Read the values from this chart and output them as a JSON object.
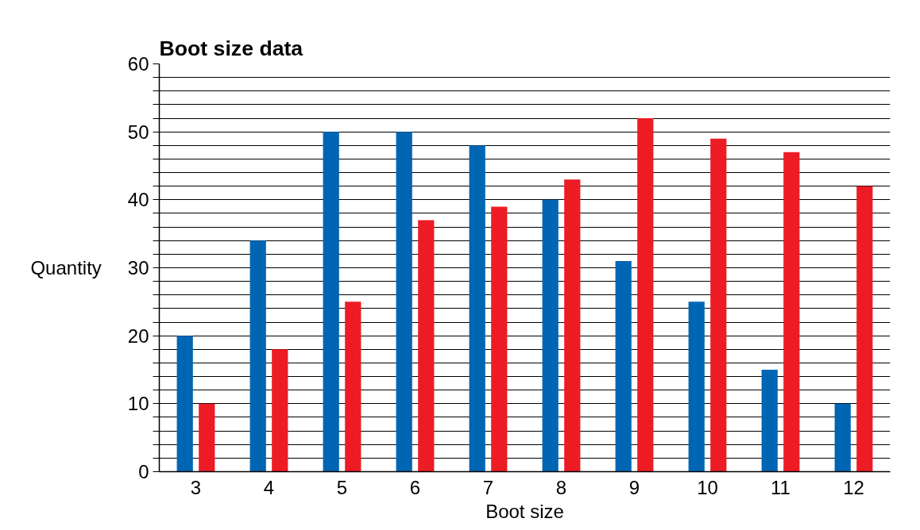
{
  "chart_data": {
    "type": "bar",
    "title": "Boot size data",
    "xlabel": "Boot size",
    "ylabel": "Quantity",
    "categories": [
      "3",
      "4",
      "5",
      "6",
      "7",
      "8",
      "9",
      "10",
      "11",
      "12"
    ],
    "series": [
      {
        "color": "#0066b3",
        "values": [
          20,
          34,
          50,
          50,
          48,
          40,
          31,
          25,
          15,
          10
        ]
      },
      {
        "color": "#ed1c24",
        "values": [
          10,
          18,
          25,
          37,
          39,
          43,
          52,
          49,
          47,
          42
        ]
      }
    ],
    "ylim": [
      0,
      60
    ],
    "yticks": [
      0,
      {
        "value": 2,
        "label": null
      },
      {
        "value": 4,
        "label": null
      },
      {
        "value": 6,
        "label": null
      },
      {
        "value": 8,
        "label": null
      },
      10,
      {
        "value": 12,
        "label": null
      },
      {
        "value": 14,
        "label": null
      },
      {
        "value": 16,
        "label": null
      },
      {
        "value": 18,
        "label": null
      },
      20,
      {
        "value": 22,
        "label": null
      },
      {
        "value": 24,
        "label": null
      },
      {
        "value": 26,
        "label": null
      },
      {
        "value": 28,
        "label": null
      },
      30,
      {
        "value": 32,
        "label": null
      },
      {
        "value": 34,
        "label": null
      },
      {
        "value": 36,
        "label": null
      },
      {
        "value": 38,
        "label": null
      },
      40,
      {
        "value": 42,
        "label": null
      },
      {
        "value": 44,
        "label": null
      },
      {
        "value": 46,
        "label": null
      },
      {
        "value": 48,
        "label": null
      },
      50,
      {
        "value": 52,
        "label": null
      },
      {
        "value": 54,
        "label": null
      },
      {
        "value": 56,
        "label": null
      },
      {
        "value": 58,
        "label": null
      },
      60
    ],
    "grid": "y"
  }
}
